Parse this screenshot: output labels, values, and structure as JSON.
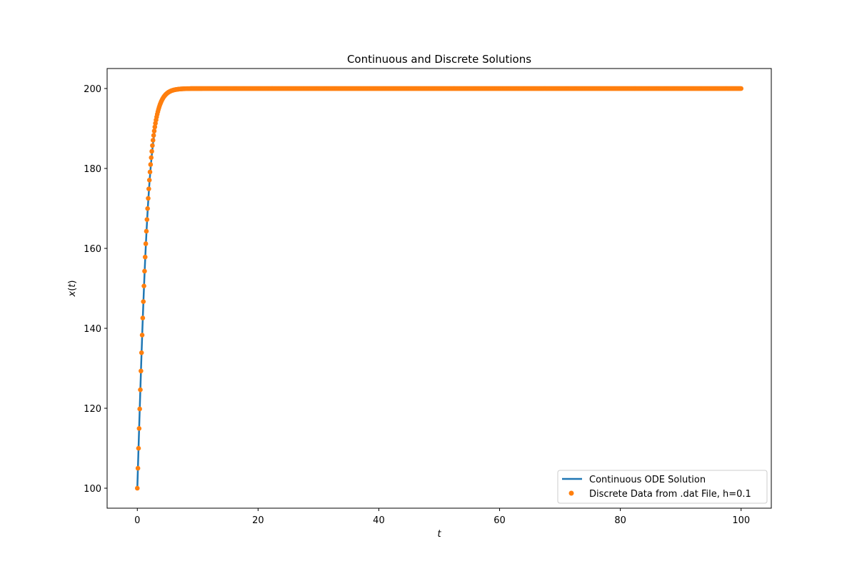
{
  "chart_data": {
    "type": "line",
    "title": "Continuous and Discrete Solutions",
    "xlabel": "t",
    "ylabel": "x(t)",
    "xlim": [
      -5,
      105
    ],
    "ylim": [
      95,
      205
    ],
    "x_ticks": [
      0,
      20,
      40,
      60,
      80,
      100
    ],
    "y_ticks": [
      100,
      120,
      140,
      160,
      180,
      200
    ],
    "grid": false,
    "legend_position": "lower-right",
    "series": [
      {
        "name": "Continuous ODE Solution",
        "kind": "line",
        "color": "#1f77b4",
        "model": "logistic",
        "params": {
          "x0": 100,
          "K": 200,
          "r": 1.0
        },
        "t_range": [
          0,
          100
        ],
        "x": [
          0,
          0.2,
          0.4,
          0.6,
          0.8,
          1.0,
          1.2,
          1.4,
          1.6,
          1.8,
          2.0,
          2.5,
          3.0,
          4.0,
          5.0,
          6.0,
          8.0,
          10,
          20,
          40,
          60,
          80,
          100
        ],
        "values": [
          100,
          110.0,
          119.7,
          129.1,
          138.0,
          146.2,
          153.7,
          160.4,
          166.4,
          171.6,
          176.2,
          184.8,
          190.5,
          196.4,
          198.7,
          199.5,
          199.9,
          200,
          200,
          200,
          200,
          200,
          200
        ]
      },
      {
        "name": "Discrete Data from .dat File, h=0.1",
        "kind": "scatter",
        "color": "#ff7f0e",
        "model": "logistic-euler",
        "params": {
          "x0": 100,
          "K": 200,
          "r": 1.0,
          "h": 0.1
        },
        "t_range": [
          0,
          100
        ],
        "x": [
          0,
          0.1,
          0.2,
          0.3,
          0.4,
          0.5,
          1.0,
          1.5,
          2.0,
          2.5,
          3.0,
          4.0,
          5.0,
          6.0,
          8.0,
          10,
          20,
          40,
          60,
          80,
          100
        ],
        "values": [
          100,
          105.0,
          110.0,
          114.9,
          119.8,
          124.5,
          146.6,
          164.3,
          176.6,
          186.0,
          191.0,
          196.6,
          198.8,
          199.6,
          199.9,
          200,
          200,
          200,
          200,
          200,
          200
        ]
      }
    ]
  }
}
